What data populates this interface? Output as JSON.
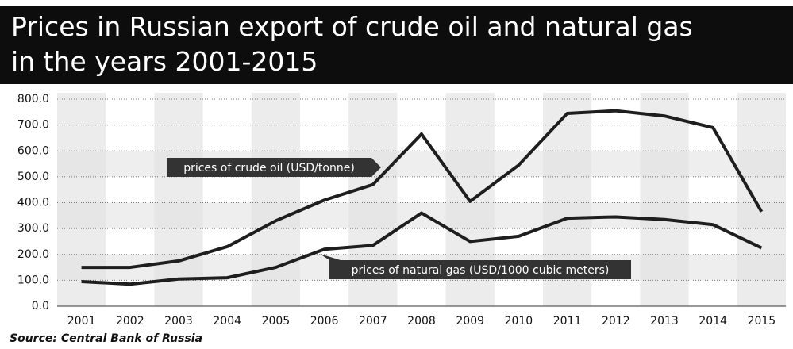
{
  "chart_data": {
    "type": "line",
    "title": "Prices in Russian export of crude oil and natural gas in the years 2001-2015",
    "source": "Source: Central Bank of Russia",
    "categories": [
      "2001",
      "2002",
      "2003",
      "2004",
      "2005",
      "2006",
      "2007",
      "2008",
      "2009",
      "2010",
      "2011",
      "2012",
      "2013",
      "2014",
      "2015"
    ],
    "series": [
      {
        "name": "prices of crude oil (USD/tonne)",
        "color": "#1e1e1e",
        "values": [
          150,
          150,
          175,
          230,
          330,
          410,
          470,
          665,
          405,
          545,
          745,
          755,
          735,
          690,
          365
        ]
      },
      {
        "name": "prices of natural gas (USD/1000 cubic meters)",
        "color": "#1e1e1e",
        "values": [
          95,
          85,
          105,
          110,
          150,
          220,
          235,
          360,
          250,
          270,
          340,
          345,
          335,
          315,
          225
        ]
      }
    ],
    "ylim": [
      0,
      800
    ],
    "yticks": [
      {
        "value": 0,
        "label": "0.0"
      },
      {
        "value": 100,
        "label": "100.0"
      },
      {
        "value": 200,
        "label": "200.0"
      },
      {
        "value": 300,
        "label": "300.0"
      },
      {
        "value": 400,
        "label": "400.0"
      },
      {
        "value": 500,
        "label": "500.0"
      },
      {
        "value": 600,
        "label": "600.0"
      },
      {
        "value": 700,
        "label": "700.0"
      },
      {
        "value": 800,
        "label": "800.0"
      }
    ],
    "grid": true
  }
}
